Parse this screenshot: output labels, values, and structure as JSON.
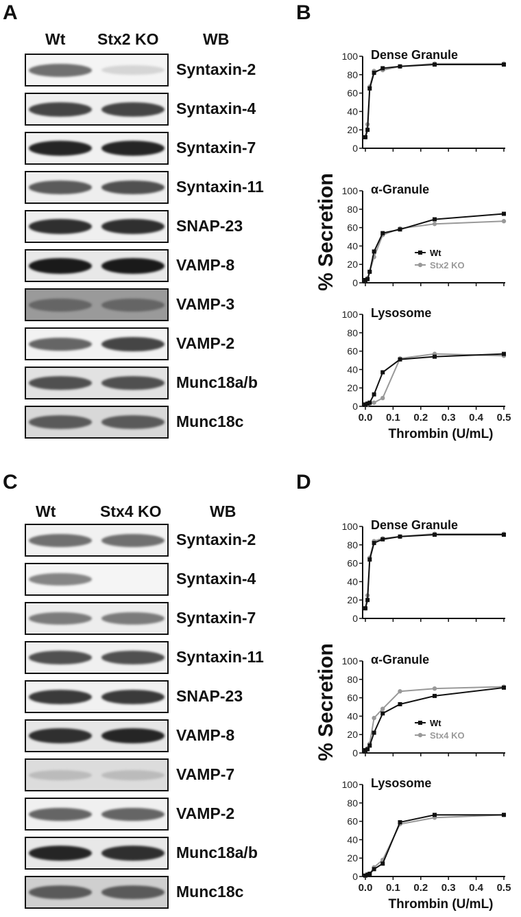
{
  "panels": {
    "A": {
      "label": "A",
      "headers": {
        "wt": "Wt",
        "ko": "Stx2 KO",
        "wb": "WB"
      },
      "blots": [
        {
          "name": "Syntaxin-2",
          "bg": "#f4f4f4",
          "wt": 0.55,
          "ko": 0.08
        },
        {
          "name": "Syntaxin-4",
          "bg": "#efefef",
          "wt": 0.75,
          "ko": 0.75
        },
        {
          "name": "Syntaxin-7",
          "bg": "#f1f1f1",
          "wt": 0.9,
          "ko": 0.9
        },
        {
          "name": "Syntaxin-11",
          "bg": "#eeeeee",
          "wt": 0.65,
          "ko": 0.7
        },
        {
          "name": "SNAP-23",
          "bg": "#efefef",
          "wt": 0.85,
          "ko": 0.85
        },
        {
          "name": "VAMP-8",
          "bg": "#e8e8e8",
          "wt": 0.95,
          "ko": 0.95
        },
        {
          "name": "VAMP-3",
          "bg": "#9a9a9a",
          "wt": 0.6,
          "ko": 0.6
        },
        {
          "name": "VAMP-2",
          "bg": "#f2f2f2",
          "wt": 0.6,
          "ko": 0.75
        },
        {
          "name": "Munc18a/b",
          "bg": "#e2e2e2",
          "wt": 0.7,
          "ko": 0.7
        },
        {
          "name": "Munc18c",
          "bg": "#d8d8d8",
          "wt": 0.65,
          "ko": 0.65
        }
      ]
    },
    "C": {
      "label": "C",
      "headers": {
        "wt": "Wt",
        "ko": "Stx4 KO",
        "wb": "WB"
      },
      "blots": [
        {
          "name": "Syntaxin-2",
          "bg": "#f1f1f1",
          "wt": 0.55,
          "ko": 0.55
        },
        {
          "name": "Syntaxin-4",
          "bg": "#f5f5f5",
          "wt": 0.45,
          "ko": 0.0
        },
        {
          "name": "Syntaxin-7",
          "bg": "#ededed",
          "wt": 0.5,
          "ko": 0.5
        },
        {
          "name": "Syntaxin-11",
          "bg": "#f0f0f0",
          "wt": 0.7,
          "ko": 0.7
        },
        {
          "name": "SNAP-23",
          "bg": "#f1f1f1",
          "wt": 0.8,
          "ko": 0.8
        },
        {
          "name": "VAMP-8",
          "bg": "#e6e6e6",
          "wt": 0.85,
          "ko": 0.9
        },
        {
          "name": "VAMP-7",
          "bg": "#dcdcdc",
          "wt": 0.2,
          "ko": 0.2
        },
        {
          "name": "VAMP-2",
          "bg": "#f0f0f0",
          "wt": 0.6,
          "ko": 0.6
        },
        {
          "name": "Munc18a/b",
          "bg": "#e8e8e8",
          "wt": 0.9,
          "ko": 0.85
        },
        {
          "name": "Munc18c",
          "bg": "#cfcfcf",
          "wt": 0.65,
          "ko": 0.65
        }
      ]
    },
    "B": {
      "label": "B"
    },
    "D": {
      "label": "D"
    }
  },
  "chart_data": [
    {
      "panel": "B",
      "type": "line",
      "ylabel": "% Secretion",
      "xlabel": "Thrombin (U/mL)",
      "xlim": [
        0.0,
        0.5
      ],
      "xticks": [
        "0.0",
        "0.1",
        "0.2",
        "0.3",
        "0.4",
        "0.5"
      ],
      "x": [
        0,
        0.0078,
        0.0156,
        0.03125,
        0.0625,
        0.125,
        0.25,
        0.5
      ],
      "legend": [
        "Wt",
        "Stx2 KO"
      ],
      "legend_in_subplot": 1,
      "colors": {
        "wt": "#111111",
        "ko": "#999999"
      },
      "subplots": [
        {
          "title": "Dense Granule",
          "ylim": [
            0,
            100
          ],
          "yticks": [
            "0",
            "20",
            "40",
            "60",
            "80",
            "100"
          ],
          "series": [
            {
              "name": "Wt",
              "values": [
                12,
                20,
                65,
                82,
                87,
                89,
                91,
                91
              ]
            },
            {
              "name": "Stx2 KO",
              "values": [
                12,
                26,
                67,
                84,
                85,
                89,
                92,
                92
              ]
            }
          ]
        },
        {
          "title": "α-Granule",
          "ylim": [
            0,
            100
          ],
          "yticks": [
            "0",
            "20",
            "40",
            "60",
            "80",
            "100"
          ],
          "series": [
            {
              "name": "Wt",
              "values": [
                3,
                4,
                12,
                34,
                54,
                58,
                69,
                75
              ]
            },
            {
              "name": "Stx2 KO",
              "values": [
                3,
                5,
                12,
                28,
                52,
                59,
                64,
                67
              ]
            }
          ]
        },
        {
          "title": "Lysosome",
          "ylim": [
            0,
            100
          ],
          "yticks": [
            "0",
            "20",
            "40",
            "60",
            "80",
            "100"
          ],
          "series": [
            {
              "name": "Wt",
              "values": [
                2,
                3,
                4,
                13,
                37,
                51,
                54,
                57
              ]
            },
            {
              "name": "Stx2 KO",
              "values": [
                2,
                2,
                3,
                4,
                9,
                52,
                57,
                55
              ]
            }
          ]
        }
      ]
    },
    {
      "panel": "D",
      "type": "line",
      "ylabel": "% Secretion",
      "xlabel": "Thrombin (U/mL)",
      "xlim": [
        0.0,
        0.5
      ],
      "xticks": [
        "0.0",
        "0.1",
        "0.2",
        "0.3",
        "0.4",
        "0.5"
      ],
      "x": [
        0,
        0.0078,
        0.0156,
        0.03125,
        0.0625,
        0.125,
        0.25,
        0.5
      ],
      "legend": [
        "Wt",
        "Stx4 KO"
      ],
      "legend_in_subplot": 1,
      "colors": {
        "wt": "#111111",
        "ko": "#999999"
      },
      "subplots": [
        {
          "title": "Dense Granule",
          "ylim": [
            0,
            100
          ],
          "yticks": [
            "0",
            "20",
            "40",
            "60",
            "80",
            "100"
          ],
          "series": [
            {
              "name": "Wt",
              "values": [
                11,
                20,
                64,
                82,
                86,
                89,
                91,
                91
              ]
            },
            {
              "name": "Stx4 KO",
              "values": [
                11,
                25,
                66,
                84,
                87,
                89,
                92,
                92
              ]
            }
          ]
        },
        {
          "title": "α-Granule",
          "ylim": [
            0,
            100
          ],
          "yticks": [
            "0",
            "20",
            "40",
            "60",
            "80",
            "100"
          ],
          "series": [
            {
              "name": "Wt",
              "values": [
                3,
                4,
                8,
                22,
                43,
                53,
                62,
                71
              ]
            },
            {
              "name": "Stx4 KO",
              "values": [
                3,
                5,
                10,
                38,
                48,
                67,
                70,
                72
              ]
            }
          ]
        },
        {
          "title": "Lysosome",
          "ylim": [
            0,
            100
          ],
          "yticks": [
            "0",
            "20",
            "40",
            "60",
            "80",
            "100"
          ],
          "series": [
            {
              "name": "Wt",
              "values": [
                1,
                2,
                3,
                8,
                14,
                59,
                67,
                67
              ]
            },
            {
              "name": "Stx4 KO",
              "values": [
                1,
                2,
                3,
                10,
                18,
                57,
                64,
                67
              ]
            }
          ]
        }
      ]
    }
  ]
}
